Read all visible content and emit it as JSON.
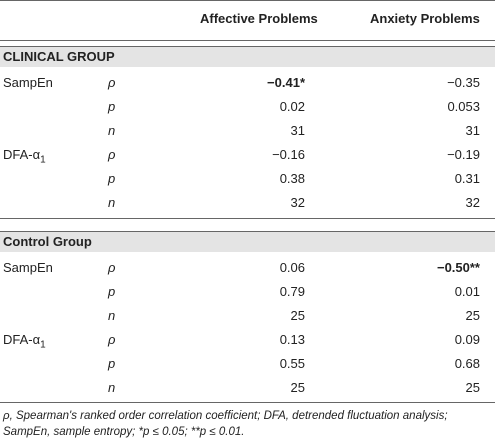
{
  "table": {
    "columns": [
      "Affective Problems",
      "Anxiety Problems"
    ],
    "sections": [
      {
        "title": "CLINICAL GROUP",
        "rows": [
          {
            "measure": "SampEn",
            "stat": "ρ",
            "values": [
              "−0.41*",
              "−0.35"
            ],
            "bold": [
              true,
              false
            ]
          },
          {
            "stat": "p",
            "values": [
              "0.02",
              "0.053"
            ]
          },
          {
            "stat": "n",
            "values": [
              "31",
              "31"
            ]
          },
          {
            "measure": "DFA-α",
            "measure_sub": "1",
            "stat": "ρ",
            "values": [
              "−0.16",
              "−0.19"
            ]
          },
          {
            "stat": "p",
            "values": [
              "0.38",
              "0.31"
            ]
          },
          {
            "stat": "n",
            "values": [
              "32",
              "32"
            ]
          }
        ]
      },
      {
        "title": "Control Group",
        "rows": [
          {
            "measure": "SampEn",
            "stat": "ρ",
            "values": [
              "0.06",
              "−0.50**"
            ],
            "bold": [
              false,
              true
            ]
          },
          {
            "stat": "p",
            "values": [
              "0.79",
              "0.01"
            ]
          },
          {
            "stat": "n",
            "values": [
              "25",
              "25"
            ]
          },
          {
            "measure": "DFA-α",
            "measure_sub": "1",
            "stat": "ρ",
            "values": [
              "0.13",
              "0.09"
            ]
          },
          {
            "stat": "p",
            "values": [
              "0.55",
              "0.68"
            ]
          },
          {
            "stat": "n",
            "values": [
              "25",
              "25"
            ]
          }
        ]
      }
    ],
    "footnote": "ρ, Spearman's ranked order correlation coefficient; DFA, detrended fluctuation analysis; SampEn, sample entropy; *p ≤ 0.05; **p ≤ 0.01."
  }
}
